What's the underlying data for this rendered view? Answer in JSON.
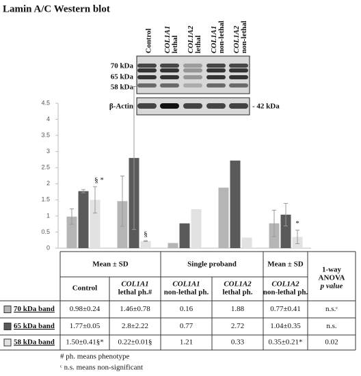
{
  "title": "Lamin A/C Western blot",
  "blot": {
    "lanes": [
      [
        "Control"
      ],
      [
        "COL1A1",
        "lethal"
      ],
      [
        "COL1A2",
        "lethal"
      ],
      [
        "COL1A1",
        "non-lethal"
      ],
      [
        "COL1A2",
        "non-lethal"
      ]
    ],
    "markers": [
      "70 kDa",
      "65 kDa",
      "58 kDa"
    ],
    "actin": "β-Actin",
    "actin_size": "- 42 kDa"
  },
  "chart_data": {
    "type": "bar",
    "categories": [
      null,
      null,
      null,
      null,
      null
    ],
    "ylim": [
      0,
      4.5
    ],
    "yticks": [
      0,
      0.5,
      1,
      1.5,
      2,
      2.5,
      3,
      3.5,
      4,
      4.5
    ],
    "series": [
      {
        "name": "70 kDa band",
        "color": "#b5b5b5",
        "values": [
          0.98,
          1.46,
          0.16,
          1.88,
          0.77
        ],
        "errors": [
          0.24,
          0.78,
          null,
          null,
          0.41
        ]
      },
      {
        "name": "65 kDa band",
        "color": "#5a5a5a",
        "values": [
          1.77,
          2.8,
          0.77,
          2.72,
          1.04
        ],
        "errors": [
          0.05,
          2.22,
          null,
          null,
          0.35
        ]
      },
      {
        "name": "58 kDa band",
        "color": "#e2e2e2",
        "values": [
          1.5,
          0.22,
          1.21,
          0.33,
          0.35
        ],
        "errors": [
          0.41,
          0.01,
          null,
          null,
          0.21
        ]
      }
    ],
    "annotations": [
      "§ *",
      "§",
      null,
      null,
      "*"
    ]
  },
  "table": {
    "header1": [
      "Mean ± SD",
      "Single proband",
      "Mean ± SD",
      [
        "1-way",
        "ANOVA",
        "p value"
      ]
    ],
    "header2": [
      [
        "Control"
      ],
      [
        "COL1A1",
        "lethal ph.#"
      ],
      [
        "COL1A1",
        "non-lethal ph."
      ],
      [
        "COL1A2",
        "lethal ph."
      ],
      [
        "COL1A2",
        "non-lethal ph."
      ]
    ],
    "rows": [
      {
        "label": "70 kDa band",
        "cells": [
          "0.98±0.24",
          "1.46±0.78",
          "0.16",
          "1.88",
          "0.77±0.41",
          "n.s.ᶜ"
        ]
      },
      {
        "label": "65 kDa band",
        "cells": [
          "1.77±0.05",
          "2.8±2.22",
          "0.77",
          "2.72",
          "1.04±0.35",
          "n.s."
        ]
      },
      {
        "label": "58 kDa band",
        "cells": [
          "1.50±0.41§*",
          "0.22±0.01§",
          "1.21",
          "0.33",
          "0.35±0.21*",
          "0.02"
        ]
      }
    ]
  },
  "footnotes": [
    "# ph. means phenotype",
    "ᶜ n.s. means non-significant"
  ]
}
